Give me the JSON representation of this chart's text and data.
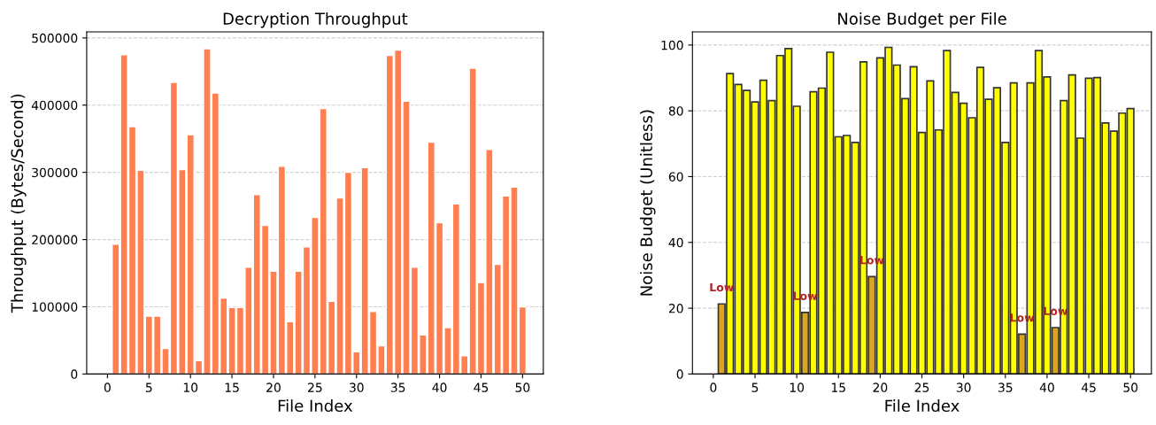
{
  "chart_data": [
    {
      "type": "bar",
      "title": "Decryption Throughput",
      "xlabel": "File Index",
      "ylabel": "Throughput (Bytes/Second)",
      "color": "#ff7f50",
      "x": [
        1,
        2,
        3,
        4,
        5,
        6,
        7,
        8,
        9,
        10,
        11,
        12,
        13,
        14,
        15,
        16,
        17,
        18,
        19,
        20,
        21,
        22,
        23,
        24,
        25,
        26,
        27,
        28,
        29,
        30,
        31,
        32,
        33,
        34,
        35,
        36,
        37,
        38,
        39,
        40,
        41,
        42,
        43,
        44,
        45,
        46,
        47,
        48,
        49,
        50
      ],
      "values": [
        193000,
        475000,
        368000,
        303000,
        86000,
        86000,
        38000,
        434000,
        304000,
        356000,
        20000,
        484000,
        418000,
        113000,
        99000,
        99000,
        159000,
        267000,
        221000,
        153000,
        309000,
        78000,
        153000,
        189000,
        233000,
        395000,
        108000,
        262000,
        300000,
        33000,
        307000,
        93000,
        42000,
        474000,
        482000,
        406000,
        159000,
        58000,
        345000,
        225000,
        69000,
        253000,
        27000,
        455000,
        136000,
        334000,
        163000,
        265000,
        278000,
        100000
      ],
      "xlim": [
        -2.5,
        52.5
      ],
      "xticks": [
        0,
        5,
        10,
        15,
        20,
        25,
        30,
        35,
        40,
        45,
        50
      ],
      "ylim": [
        0,
        509000
      ],
      "yticks": [
        0,
        100000,
        200000,
        300000,
        400000,
        500000
      ],
      "grid": "y"
    },
    {
      "type": "bar",
      "title": "Noise Budget per File",
      "xlabel": "File Index",
      "ylabel": "Noise Budget (Unitless)",
      "x": [
        1,
        2,
        3,
        4,
        5,
        6,
        7,
        8,
        9,
        10,
        11,
        12,
        13,
        14,
        15,
        16,
        17,
        18,
        19,
        20,
        21,
        22,
        23,
        24,
        25,
        26,
        27,
        28,
        29,
        30,
        31,
        32,
        33,
        34,
        35,
        36,
        37,
        38,
        39,
        40,
        41,
        42,
        43,
        44,
        45,
        46,
        47,
        48,
        49,
        50
      ],
      "values": [
        21.3,
        91.3,
        88,
        86.2,
        82.7,
        89.3,
        83.1,
        96.8,
        98.9,
        81.4,
        18.7,
        85.8,
        86.9,
        97.8,
        72.1,
        72.5,
        70.4,
        94.9,
        29.6,
        96.1,
        99.3,
        93.9,
        83.7,
        93.4,
        73.4,
        89.1,
        74.2,
        98.3,
        85.6,
        82.3,
        77.9,
        93.2,
        83.5,
        87,
        70.4,
        88.5,
        12.1,
        88.5,
        98.3,
        90.3,
        14.1,
        83.1,
        90.9,
        71.7,
        89.9,
        90.1,
        76.3,
        73.8,
        79.3,
        80.7
      ],
      "colors": [
        "#daa520",
        "#ffff00",
        "#ffff00",
        "#ffff00",
        "#ffff00",
        "#ffff00",
        "#ffff00",
        "#ffff00",
        "#ffff00",
        "#ffff00",
        "#daa520",
        "#ffff00",
        "#ffff00",
        "#ffff00",
        "#ffff00",
        "#ffff00",
        "#ffff00",
        "#ffff00",
        "#daa520",
        "#ffff00",
        "#ffff00",
        "#ffff00",
        "#ffff00",
        "#ffff00",
        "#ffff00",
        "#ffff00",
        "#ffff00",
        "#ffff00",
        "#ffff00",
        "#ffff00",
        "#ffff00",
        "#ffff00",
        "#ffff00",
        "#ffff00",
        "#ffff00",
        "#ffff00",
        "#daa520",
        "#ffff00",
        "#ffff00",
        "#ffff00",
        "#daa520",
        "#ffff00",
        "#ffff00",
        "#ffff00",
        "#ffff00",
        "#ffff00",
        "#ffff00",
        "#ffff00",
        "#ffff00",
        "#ffff00"
      ],
      "annotations": [
        {
          "text": "Low",
          "x": 1,
          "y": 21.3
        },
        {
          "text": "Low",
          "x": 11,
          "y": 18.7
        },
        {
          "text": "Low",
          "x": 19,
          "y": 29.6
        },
        {
          "text": "Low",
          "x": 37,
          "y": 12.1
        },
        {
          "text": "Low",
          "x": 41,
          "y": 14.1
        }
      ],
      "xlim": [
        -2.5,
        52.5
      ],
      "xticks": [
        0,
        5,
        10,
        15,
        20,
        25,
        30,
        35,
        40,
        45,
        50
      ],
      "ylim": [
        0,
        104
      ],
      "yticks": [
        0,
        20,
        40,
        60,
        80,
        100
      ],
      "grid": "y"
    }
  ]
}
